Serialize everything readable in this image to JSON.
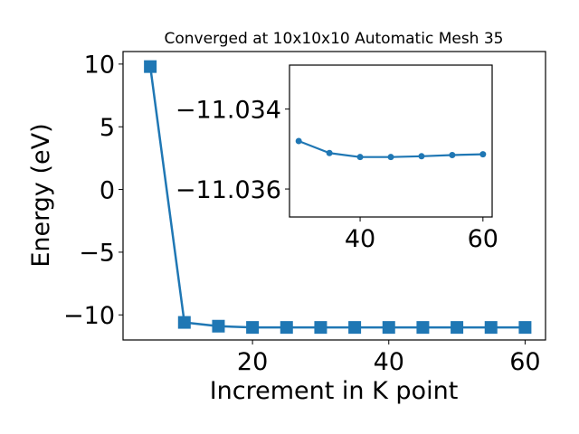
{
  "chart_data": [
    {
      "type": "line",
      "title": "Converged at 10x10x10 Automatic Mesh 35",
      "xlabel": "Increment in K point",
      "ylabel": "Energy (eV)",
      "xlim": [
        1,
        63
      ],
      "ylim": [
        -12,
        11
      ],
      "xticks": [
        20,
        40,
        60
      ],
      "yticks": [
        10,
        5,
        0,
        -5,
        -10
      ],
      "xtick_labels": [
        "20",
        "40",
        "60"
      ],
      "ytick_labels": [
        "10",
        "5",
        "0",
        "−5",
        "−10"
      ],
      "grid": false,
      "marker": "square",
      "color": "#1f77b4",
      "series": [
        {
          "x": [
            5,
            10,
            15,
            20,
            25,
            30,
            35,
            40,
            45,
            50,
            55,
            60
          ],
          "y": [
            9.8,
            -10.6,
            -10.9,
            -11.0,
            -11.0,
            -11.0,
            -11.0,
            -11.0,
            -11.0,
            -11.0,
            -11.0,
            -11.0
          ]
        }
      ]
    },
    {
      "type": "line",
      "inset": true,
      "xlim": [
        28.5,
        61.5
      ],
      "ylim": [
        -11.0367,
        -11.0329
      ],
      "xticks": [
        40,
        60
      ],
      "yticks": [
        -11.036,
        -11.034
      ],
      "xtick_labels": [
        "40",
        "60"
      ],
      "ytick_labels": [
        "−11.036",
        "−11.034"
      ],
      "grid": false,
      "marker": "circle",
      "color": "#1f77b4",
      "series": [
        {
          "x": [
            30,
            35,
            40,
            45,
            50,
            55,
            60
          ],
          "y": [
            -11.0348,
            -11.0351,
            -11.0352,
            -11.0352,
            -11.03518,
            -11.03515,
            -11.03513
          ]
        }
      ]
    }
  ]
}
